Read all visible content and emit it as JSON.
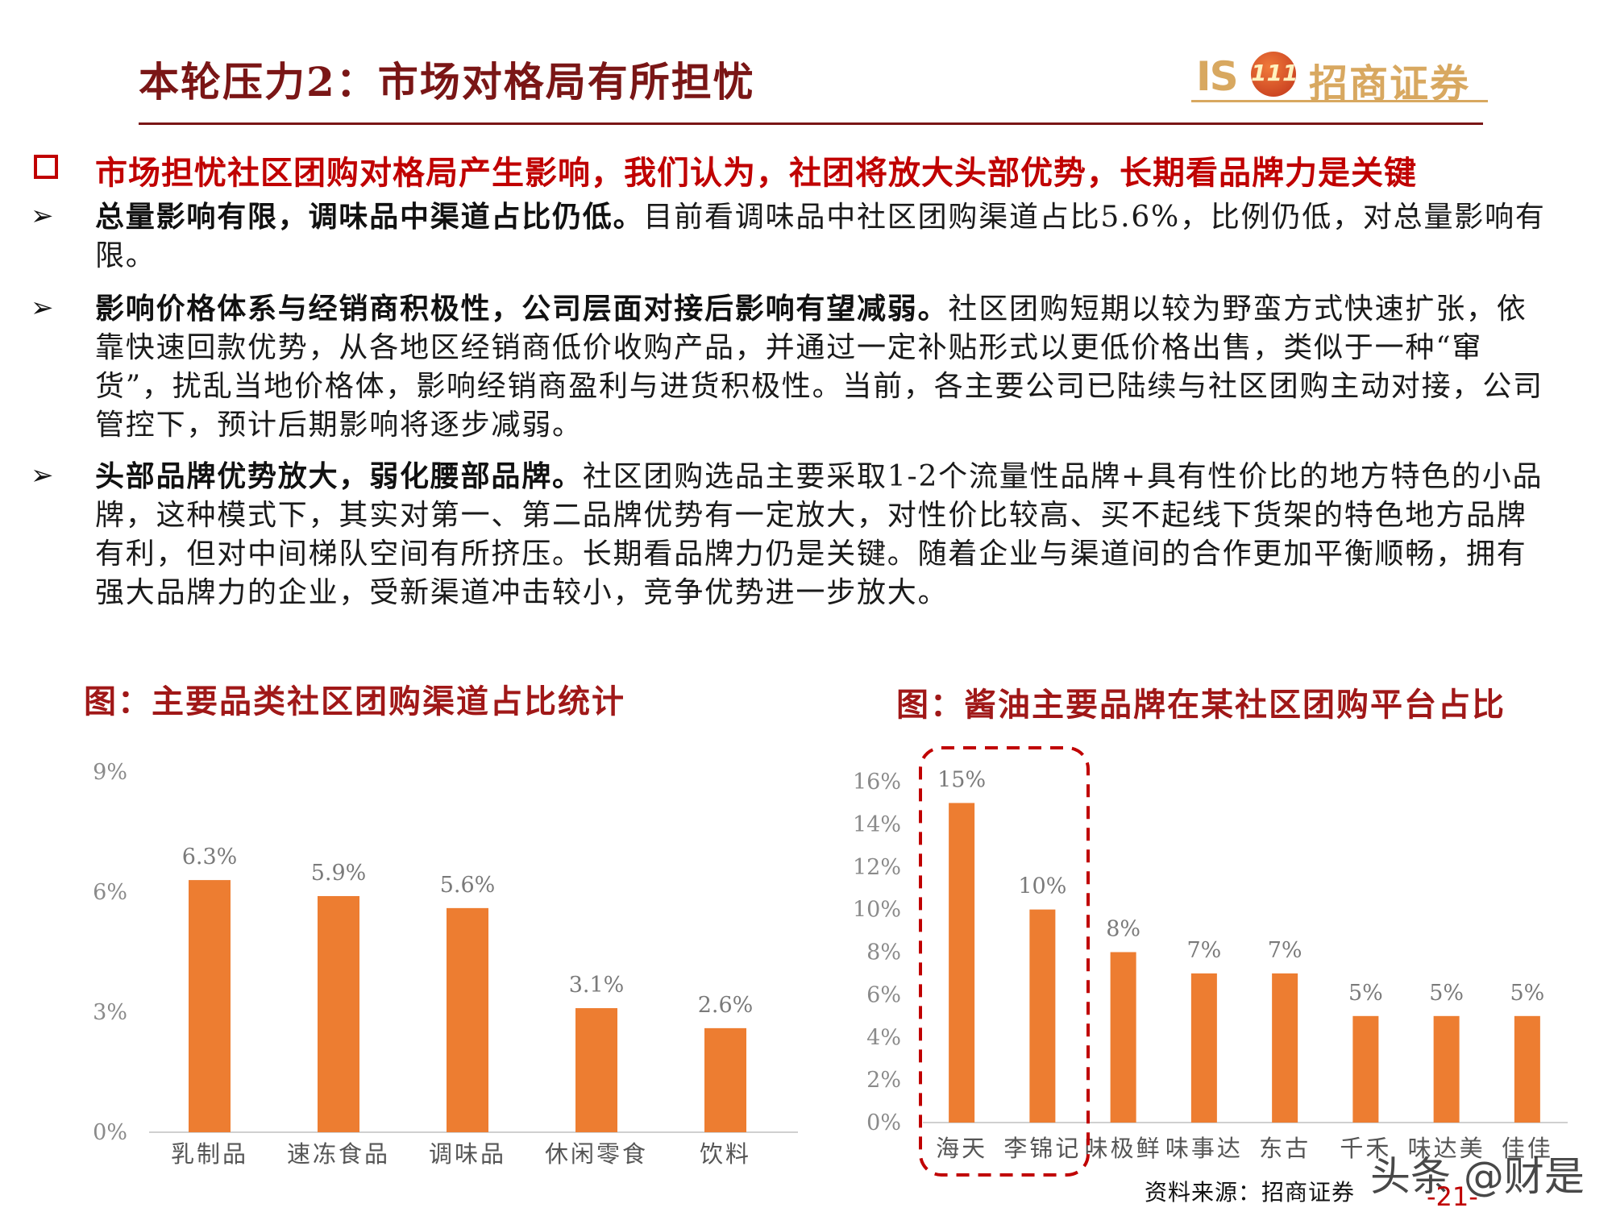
{
  "header": {
    "title": "本轮压力2：市场对格局有所担忧",
    "logo": {
      "mark": "IS",
      "badge": "111",
      "name": "招商证券"
    }
  },
  "headline": "市场担忧社区团购对格局产生影响，我们认为，社团将放大头部优势，长期看品牌力是关键",
  "bullets": [
    {
      "mark": "➢",
      "bold": "总量影响有限，调味品中渠道占比仍低。",
      "text": "目前看调味品中社区团购渠道占比5.6%，比例仍低，对总量影响有限。"
    },
    {
      "mark": "➢",
      "bold": "影响价格体系与经销商积极性，公司层面对接后影响有望减弱。",
      "text": "社区团购短期以较为野蛮方式快速扩张，依靠快速回款优势，从各地区经销商低价收购产品，并通过一定补贴形式以更低价格出售，类似于一种“窜货”，扰乱当地价格体，影响经销商盈利与进货积极性。当前，各主要公司已陆续与社区团购主动对接，公司管控下，预计后期影响将逐步减弱。"
    },
    {
      "mark": "➢",
      "bold": "头部品牌优势放大，弱化腰部品牌。",
      "text": "社区团购选品主要采取1-2个流量性品牌+具有性价比的地方特色的小品牌，这种模式下，其实对第一、第二品牌优势有一定放大，对性价比较高、买不起线下货架的特色地方品牌有利，但对中间梯队空间有所挤压。长期看品牌力仍是关键。随着企业与渠道间的合作更加平衡顺畅，拥有强大品牌力的企业，受新渠道冲击较小，竞争优势进一步放大。"
    }
  ],
  "chart_data": [
    {
      "type": "bar",
      "title": "图：主要品类社区团购渠道占比统计",
      "categories": [
        "乳制品",
        "速冻食品",
        "调味品",
        "休闲零食",
        "饮料"
      ],
      "values": [
        6.3,
        5.9,
        5.6,
        3.1,
        2.6
      ],
      "data_labels": [
        "6.3%",
        "5.9%",
        "5.6%",
        "3.1%",
        "2.6%"
      ],
      "yticks": [
        "0%",
        "3%",
        "6%",
        "9%"
      ],
      "ylim": [
        0,
        9
      ],
      "color": "#ed7d31",
      "grid": false,
      "legend": "none"
    },
    {
      "type": "bar",
      "title": "图：酱油主要品牌在某社区团购平台占比",
      "categories": [
        "海天",
        "李锦记",
        "味极鲜",
        "味事达",
        "东古",
        "千禾",
        "味达美",
        "佳佳"
      ],
      "values": [
        15,
        10,
        8,
        7,
        7,
        5,
        5,
        5
      ],
      "data_labels": [
        "15%",
        "10%",
        "8%",
        "7%",
        "7%",
        "5%",
        "5%",
        "5%"
      ],
      "yticks": [
        "0%",
        "2%",
        "4%",
        "6%",
        "8%",
        "10%",
        "12%",
        "14%",
        "16%"
      ],
      "ylim": [
        0,
        16
      ],
      "color": "#ed7d31",
      "highlight_color": "#c00000",
      "grid": false,
      "legend": "none"
    }
  ],
  "footer": {
    "source": "资料来源：招商证券",
    "page": "-21-",
    "watermark": "头条 @财是"
  }
}
